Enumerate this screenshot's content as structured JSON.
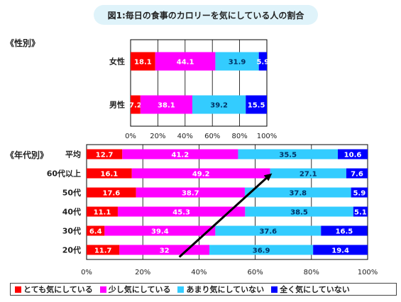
{
  "title": "図1:毎日の食事のカロリーを気にしている人の割合",
  "section_gender": "《性別》",
  "section_age": "《年代別》",
  "colors": [
    "#ff0000",
    "#ff00ff",
    "#33ccff",
    "#0000ff"
  ],
  "chart_data": [
    {
      "type": "bar",
      "orientation": "horizontal",
      "stacked": true,
      "categories": [
        "女性",
        "男性"
      ],
      "series": [
        {
          "name": "とても気にしている",
          "values": [
            18.1,
            7.2
          ]
        },
        {
          "name": "少し気にしている",
          "values": [
            44.1,
            38.1
          ]
        },
        {
          "name": "あまり気にしていない",
          "values": [
            31.9,
            39.2
          ]
        },
        {
          "name": "全く気にしていない",
          "values": [
            5.9,
            15.5
          ]
        }
      ],
      "value_labels": [
        [
          "18.1",
          "7.2"
        ],
        [
          "44.1",
          "38.1"
        ],
        [
          "31.9",
          "39.2"
        ],
        [
          "5.9",
          "15.5"
        ]
      ],
      "xlim": [
        0,
        100
      ],
      "xticks": [
        "0%",
        "20%",
        "40%",
        "60%",
        "80%",
        "100%"
      ]
    },
    {
      "type": "bar",
      "orientation": "horizontal",
      "stacked": true,
      "categories": [
        "平均",
        "60代以上",
        "50代",
        "40代",
        "30代",
        "20代"
      ],
      "series": [
        {
          "name": "とても気にしている",
          "values": [
            12.7,
            16.1,
            17.6,
            11.1,
            6.4,
            11.7
          ]
        },
        {
          "name": "少し気にしている",
          "values": [
            41.2,
            49.2,
            38.7,
            45.3,
            39.4,
            32
          ]
        },
        {
          "name": "あまり気にしていない",
          "values": [
            35.5,
            27.1,
            37.8,
            38.5,
            37.6,
            36.9
          ]
        },
        {
          "name": "全く気にしていない",
          "values": [
            10.6,
            7.6,
            5.9,
            5.1,
            16.5,
            19.4
          ]
        }
      ],
      "value_labels": [
        [
          "12.7",
          "16.1",
          "17.6",
          "11.1",
          "6.4",
          "11.7"
        ],
        [
          "41.2",
          "49.2",
          "38.7",
          "45.3",
          "39.4",
          "32"
        ],
        [
          "35.5",
          "27.1",
          "37.8",
          "38.5",
          "37.6",
          "36.9"
        ],
        [
          "10.6",
          "7.6",
          "5.9",
          "5.1",
          "16.5",
          "19.4"
        ]
      ],
      "xlim": [
        0,
        100
      ],
      "xticks": [
        "0%",
        "20%",
        "40%",
        "60%",
        "80%",
        "100%"
      ],
      "annotation": {
        "type": "arrow",
        "from": {
          "category": "20代",
          "x": 33
        },
        "to": {
          "category": "60代以上",
          "x": 66
        }
      }
    }
  ],
  "legend": [
    {
      "label": "とても気にしている",
      "color": "#ff0000"
    },
    {
      "label": "少し気にしている",
      "color": "#ff00ff"
    },
    {
      "label": "あまり気にしていない",
      "color": "#33ccff"
    },
    {
      "label": "全く気にしていない",
      "color": "#0000ff"
    }
  ]
}
